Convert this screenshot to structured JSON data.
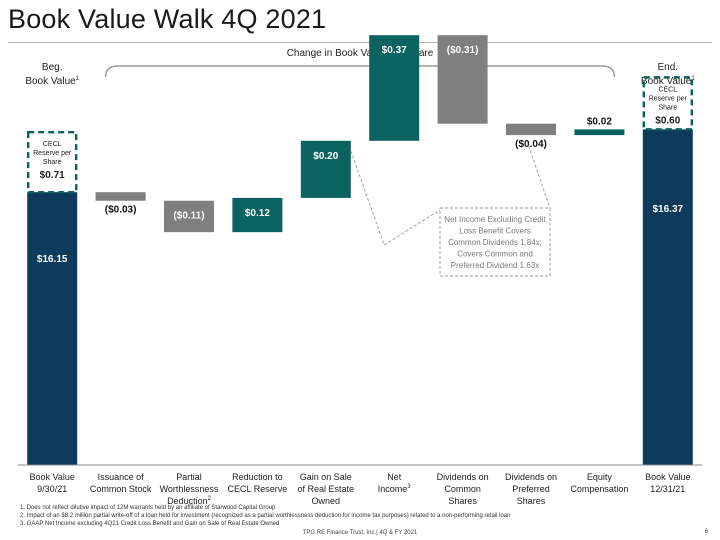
{
  "page": {
    "title": "Book Value Walk 4Q 2021",
    "footer": "TPG RE Finance Trust, Inc.| 4Q & FY 2021",
    "page_number": "6",
    "footnotes": [
      "1. Does not reflect dilutive impact of 12M warrants held by an affiliate of Starwood Capital Group",
      "2. Impact of an $8.2 million partial write-off of a loan held for investment (recognized as a partial worthlessness deduction for income tax purposes) related to a non-performing retail loan",
      "3. GAAP Net Income excluding 4Q21 Credit Loss Benefit and Gain on Sale of Real Estate Owned"
    ]
  },
  "colors": {
    "navy": "#0e3a5c",
    "teal": "#0a6360",
    "gray": "#7f7f7f",
    "bracket": "#9a9a9a"
  },
  "chart_data": {
    "type": "bar",
    "subtype": "waterfall",
    "title": "",
    "bracket_label": "Change in Book Value Per Share",
    "beg_header": [
      "Beg.",
      "Book Value"
    ],
    "end_header": [
      "End.",
      "Book Value"
    ],
    "header_superscript": "1",
    "ylim": [
      0,
      16.95
    ],
    "bars": [
      {
        "category": [
          "Book Value",
          "9/30/21"
        ],
        "kind": "total",
        "value": 16.15,
        "label": "$16.15",
        "color": "navy"
      },
      {
        "category": [
          "Issuance of",
          "Common Stock"
        ],
        "kind": "delta",
        "value": -0.03,
        "label": "($0.03)",
        "color": "gray"
      },
      {
        "category": [
          "Partial",
          "Worthlessness",
          "Deduction"
        ],
        "kind": "delta",
        "value": -0.11,
        "label": "($0.11)",
        "color": "gray",
        "superscript": "2"
      },
      {
        "category": [
          "Reduction to",
          "CECL Reserve"
        ],
        "kind": "delta",
        "value": 0.12,
        "label": "$0.12",
        "color": "teal"
      },
      {
        "category": [
          "Gain on Sale",
          "of Real Estate",
          "Owned"
        ],
        "kind": "delta",
        "value": 0.2,
        "label": "$0.20",
        "color": "teal"
      },
      {
        "category": [
          "Net",
          "Income"
        ],
        "kind": "delta",
        "value": 0.37,
        "label": "$0.37",
        "color": "teal",
        "superscript": "3"
      },
      {
        "category": [
          "Dividends on",
          "Common",
          "Shares"
        ],
        "kind": "delta",
        "value": -0.31,
        "label": "($0.31)",
        "color": "gray"
      },
      {
        "category": [
          "Dividends on",
          "Preferred",
          "Shares"
        ],
        "kind": "delta",
        "value": -0.04,
        "label": "($0.04)",
        "color": "gray"
      },
      {
        "category": [
          "Equity",
          "Compensation"
        ],
        "kind": "delta",
        "value": 0.02,
        "label": "$0.02",
        "color": "teal"
      },
      {
        "category": [
          "Book Value",
          "12/31/21"
        ],
        "kind": "total",
        "value": 16.37,
        "label": "$16.37",
        "color": "navy"
      }
    ],
    "cecl_boxes": [
      {
        "bar_index": 0,
        "lines": [
          "CECL",
          "Reserve per",
          "Share"
        ],
        "value": "$0.71",
        "amount": 0.71
      },
      {
        "bar_index": 9,
        "lines": [
          "CECL",
          "Reserve per",
          "Share"
        ],
        "value": "$0.60",
        "amount": 0.6
      }
    ],
    "callout": {
      "lines": [
        "Net Income Excluding Credit",
        "Loss Benefit Covers",
        "Common Dividends 1.84x;",
        "Covers Common and",
        "Preferred Dividend 1.63x"
      ]
    }
  }
}
